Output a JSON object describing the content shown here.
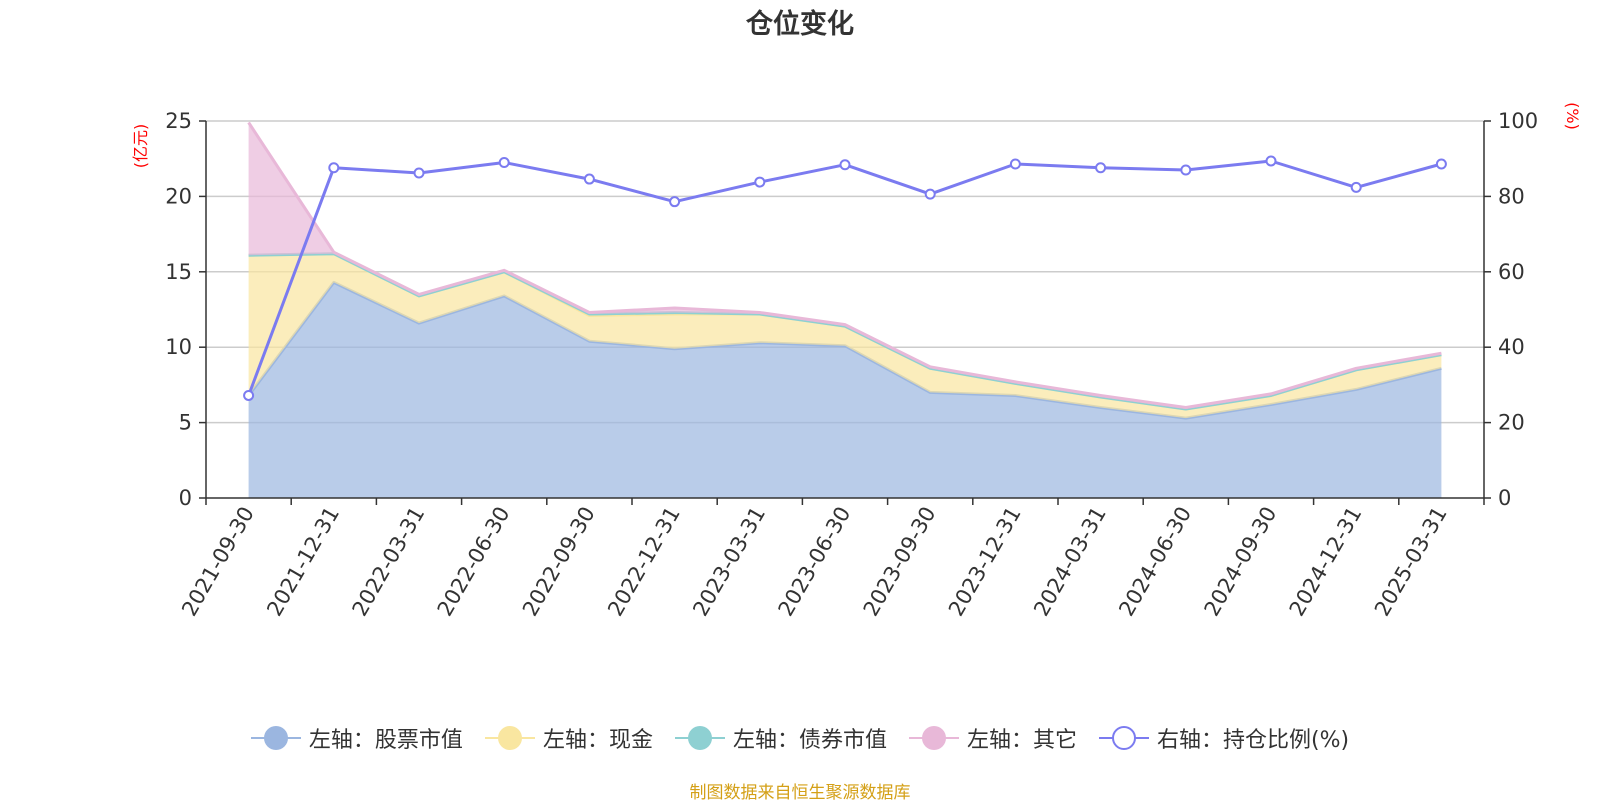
{
  "chart_data": {
    "type": "area",
    "title": "仓位变化",
    "left_axis_unit": "(亿元)",
    "right_axis_unit": "(%)",
    "ylim_left": [
      0,
      25
    ],
    "ylim_right": [
      0,
      100
    ],
    "left_ticks": [
      "0",
      "5",
      "10",
      "15",
      "20",
      "25"
    ],
    "right_ticks": [
      "0",
      "20",
      "40",
      "60",
      "80",
      "100"
    ],
    "categories": [
      "2021-09-30",
      "2021-12-31",
      "2022-03-31",
      "2022-06-30",
      "2022-09-30",
      "2022-12-31",
      "2023-03-31",
      "2023-06-30",
      "2023-09-30",
      "2023-12-31",
      "2024-03-31",
      "2024-06-30",
      "2024-09-30",
      "2024-12-31",
      "2025-03-31"
    ],
    "stacked": true,
    "grid": true,
    "legend_position": "bottom",
    "series": [
      {
        "name": "左轴：股票市值",
        "axis": "left",
        "type": "area",
        "color": "#9bb6e0",
        "values": [
          6.8,
          14.3,
          11.6,
          13.4,
          10.4,
          9.9,
          10.3,
          10.1,
          7.0,
          6.8,
          6.0,
          5.3,
          6.2,
          7.2,
          8.6
        ]
      },
      {
        "name": "左轴：现金",
        "axis": "left",
        "type": "area",
        "color": "#f9e6a0",
        "values": [
          9.3,
          1.9,
          1.8,
          1.6,
          1.7,
          2.3,
          1.9,
          1.3,
          1.6,
          0.8,
          0.7,
          0.6,
          0.6,
          1.3,
          0.9
        ]
      },
      {
        "name": "左轴：债券市值",
        "axis": "left",
        "type": "area",
        "color": "#8ed0d2",
        "values": [
          0,
          0,
          0,
          0,
          0.1,
          0.1,
          0,
          0,
          0,
          0,
          0,
          0,
          0,
          0,
          0
        ]
      },
      {
        "name": "左轴：其它",
        "axis": "left",
        "type": "area",
        "color": "#e8b8d8",
        "values": [
          8.8,
          0.1,
          0.1,
          0.1,
          0.1,
          0.3,
          0.1,
          0.1,
          0.1,
          0.1,
          0.1,
          0.1,
          0.1,
          0.1,
          0.1
        ]
      },
      {
        "name": "右轴：持仓比例(%)",
        "axis": "right",
        "type": "line",
        "color": "#7b7bf0",
        "values": [
          27.2,
          87.6,
          86.2,
          89.0,
          84.6,
          78.6,
          83.8,
          88.4,
          80.6,
          88.6,
          87.6,
          87.0,
          89.4,
          82.4,
          88.6
        ]
      }
    ]
  },
  "source_note": "制图数据来自恒生聚源数据库"
}
